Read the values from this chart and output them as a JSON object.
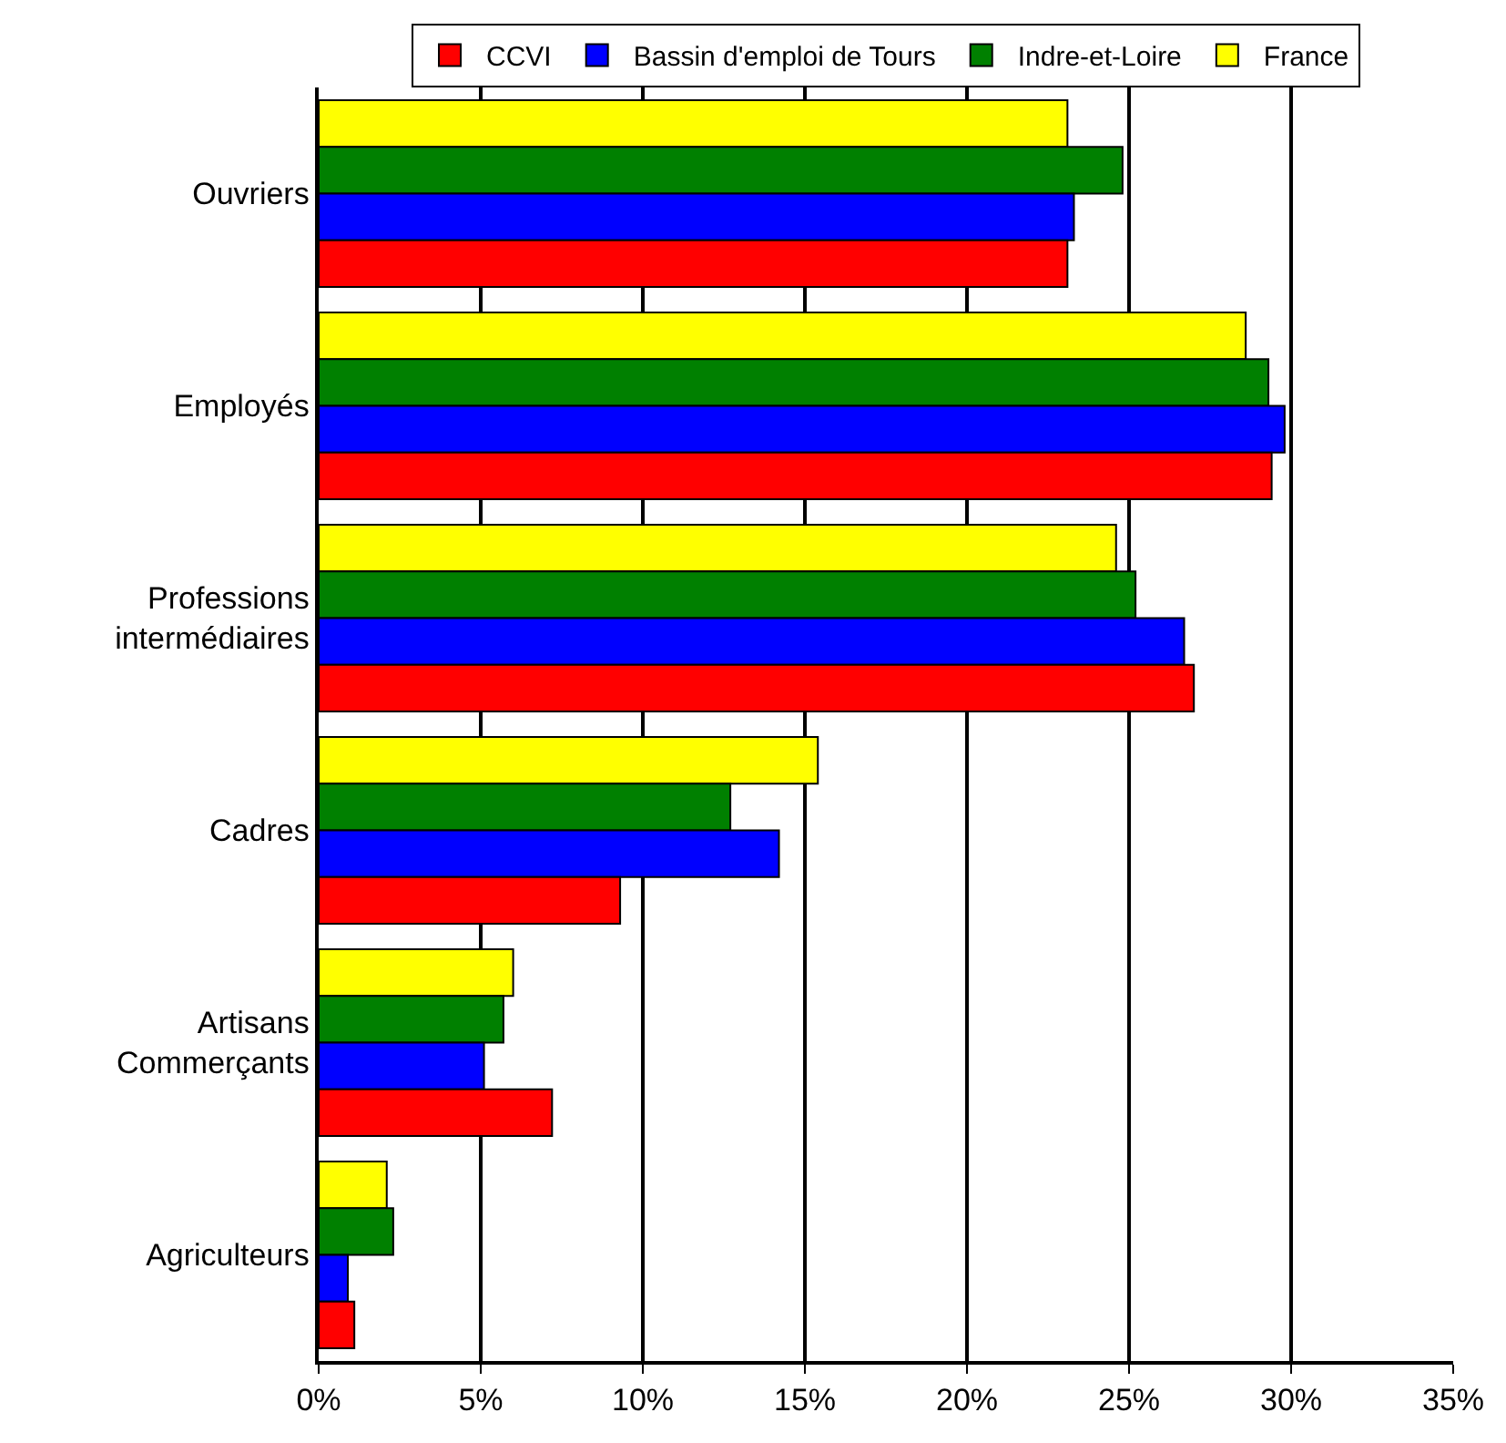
{
  "chart_data": {
    "type": "bar",
    "orientation": "horizontal",
    "categories": [
      "Ouvriers",
      "Employés",
      "Professions\nintermédiaires",
      "Cadres",
      "Artisans\nCommerçants",
      "Agriculteurs"
    ],
    "series": [
      {
        "name": "CCVI",
        "color": "#ff0000",
        "values": [
          23.1,
          29.4,
          27.0,
          9.3,
          7.2,
          1.1
        ]
      },
      {
        "name": "Bassin d'emploi de Tours",
        "color": "#0000ff",
        "values": [
          23.3,
          29.8,
          26.7,
          14.2,
          5.1,
          0.9
        ]
      },
      {
        "name": "Indre-et-Loire",
        "color": "#008000",
        "values": [
          24.8,
          29.3,
          25.2,
          12.7,
          5.7,
          2.3
        ]
      },
      {
        "name": "France",
        "color": "#ffff00",
        "values": [
          23.1,
          28.6,
          24.6,
          15.4,
          6.0,
          2.1
        ]
      }
    ],
    "xlim": [
      0,
      35
    ],
    "xticks": [
      {
        "value": 0,
        "label": "0%"
      },
      {
        "value": 5,
        "label": "5%"
      },
      {
        "value": 10,
        "label": "10%"
      },
      {
        "value": 15,
        "label": "15%"
      },
      {
        "value": 20,
        "label": "20%"
      },
      {
        "value": 25,
        "label": "25%"
      },
      {
        "value": 30,
        "label": "30%"
      },
      {
        "value": 35,
        "label": "35%"
      }
    ],
    "grid": "x",
    "legend": "top"
  }
}
